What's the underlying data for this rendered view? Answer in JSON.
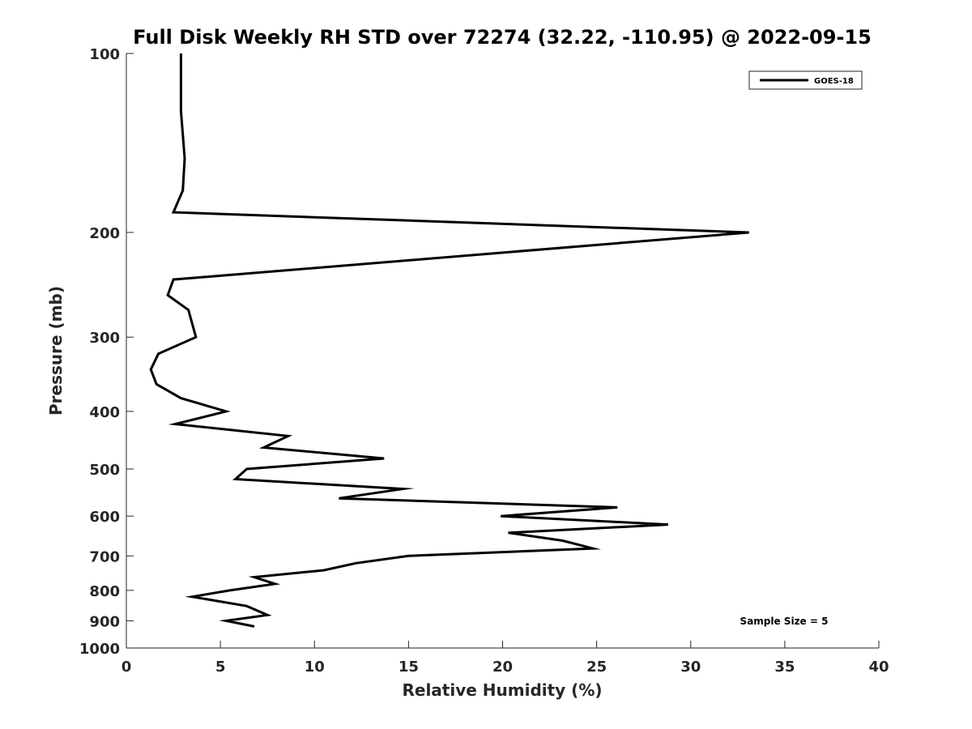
{
  "chart_data": {
    "type": "line",
    "title": "Full Disk Weekly RH STD over 72274 (32.22, -110.95) @ 2022-09-15",
    "xlabel": "Relative Humidity (%)",
    "ylabel": "Pressure (mb)",
    "xlim": [
      0,
      40
    ],
    "ylim": [
      100,
      1000
    ],
    "y_scale": "log",
    "y_reversed": true,
    "grid": false,
    "legend_position": "top-right",
    "x_ticks": [
      "0",
      "5",
      "10",
      "15",
      "20",
      "25",
      "30",
      "35",
      "40"
    ],
    "y_ticks": [
      "100",
      "200",
      "300",
      "400",
      "500",
      "600",
      "700",
      "800",
      "900",
      "1000"
    ],
    "series": [
      {
        "name": "GOES-18",
        "color": "#000000",
        "points": [
          {
            "rh": 2.9,
            "p": 100
          },
          {
            "rh": 2.9,
            "p": 125
          },
          {
            "rh": 3.1,
            "p": 150
          },
          {
            "rh": 3.0,
            "p": 170
          },
          {
            "rh": 2.5,
            "p": 185
          },
          {
            "rh": 33.1,
            "p": 200
          },
          {
            "rh": 2.5,
            "p": 240
          },
          {
            "rh": 2.2,
            "p": 255
          },
          {
            "rh": 3.3,
            "p": 270
          },
          {
            "rh": 3.7,
            "p": 300
          },
          {
            "rh": 1.7,
            "p": 320
          },
          {
            "rh": 1.3,
            "p": 340
          },
          {
            "rh": 1.6,
            "p": 360
          },
          {
            "rh": 2.9,
            "p": 380
          },
          {
            "rh": 5.3,
            "p": 400
          },
          {
            "rh": 2.6,
            "p": 420
          },
          {
            "rh": 8.6,
            "p": 440
          },
          {
            "rh": 7.3,
            "p": 460
          },
          {
            "rh": 13.7,
            "p": 480
          },
          {
            "rh": 6.4,
            "p": 500
          },
          {
            "rh": 5.8,
            "p": 520
          },
          {
            "rh": 14.7,
            "p": 540
          },
          {
            "rh": 11.3,
            "p": 560
          },
          {
            "rh": 26.1,
            "p": 580
          },
          {
            "rh": 19.9,
            "p": 600
          },
          {
            "rh": 28.8,
            "p": 620
          },
          {
            "rh": 20.3,
            "p": 640
          },
          {
            "rh": 23.2,
            "p": 660
          },
          {
            "rh": 24.8,
            "p": 680
          },
          {
            "rh": 15.0,
            "p": 700
          },
          {
            "rh": 12.2,
            "p": 720
          },
          {
            "rh": 10.5,
            "p": 740
          },
          {
            "rh": 6.8,
            "p": 760
          },
          {
            "rh": 7.9,
            "p": 780
          },
          {
            "rh": 5.5,
            "p": 800
          },
          {
            "rh": 3.5,
            "p": 820
          },
          {
            "rh": 6.4,
            "p": 850
          },
          {
            "rh": 7.5,
            "p": 880
          },
          {
            "rh": 5.3,
            "p": 900
          },
          {
            "rh": 6.8,
            "p": 920
          }
        ]
      }
    ],
    "legend_label": "GOES-18",
    "annotation": "Sample Size = 5"
  }
}
